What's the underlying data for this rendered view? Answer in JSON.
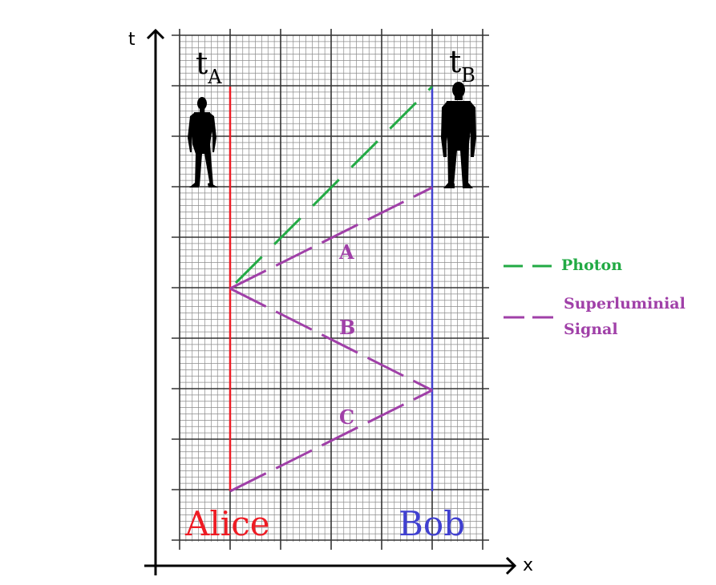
{
  "axes": {
    "t_label": "t",
    "x_label": "x"
  },
  "observers": {
    "alice": {
      "name": "Alice",
      "time_symbol": "t",
      "time_subscript": "A",
      "color": "#ee1c24"
    },
    "bob": {
      "name": "Bob",
      "time_symbol": "t",
      "time_subscript": "B",
      "color": "#4040d0"
    }
  },
  "signals": {
    "A": "A",
    "B": "B",
    "C": "C"
  },
  "legend": {
    "photon": {
      "label": "Photon",
      "color": "#22aa44"
    },
    "superluminal": {
      "line1": "Superluminial",
      "line2": "Signal",
      "color": "#a040a8"
    }
  },
  "colors": {
    "grid_major": "#333333",
    "grid_minor": "#8c8c8c",
    "axis": "#000000"
  }
}
